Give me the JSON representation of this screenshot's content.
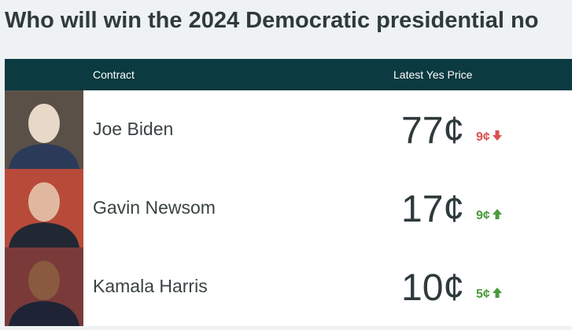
{
  "header": {
    "title": "Who will win the 2024 Democratic presidential no"
  },
  "table": {
    "columns": [
      "Contract",
      "Latest Yes Price"
    ],
    "up_color": "#4a9a3c",
    "down_color": "#d9534f",
    "rows": [
      {
        "name": "Joe Biden",
        "price": "77¢",
        "change": "9¢",
        "direction": "down"
      },
      {
        "name": "Gavin Newsom",
        "price": "17¢",
        "change": "9¢",
        "direction": "up"
      },
      {
        "name": "Kamala Harris",
        "price": "10¢",
        "change": "5¢",
        "direction": "up"
      }
    ]
  }
}
